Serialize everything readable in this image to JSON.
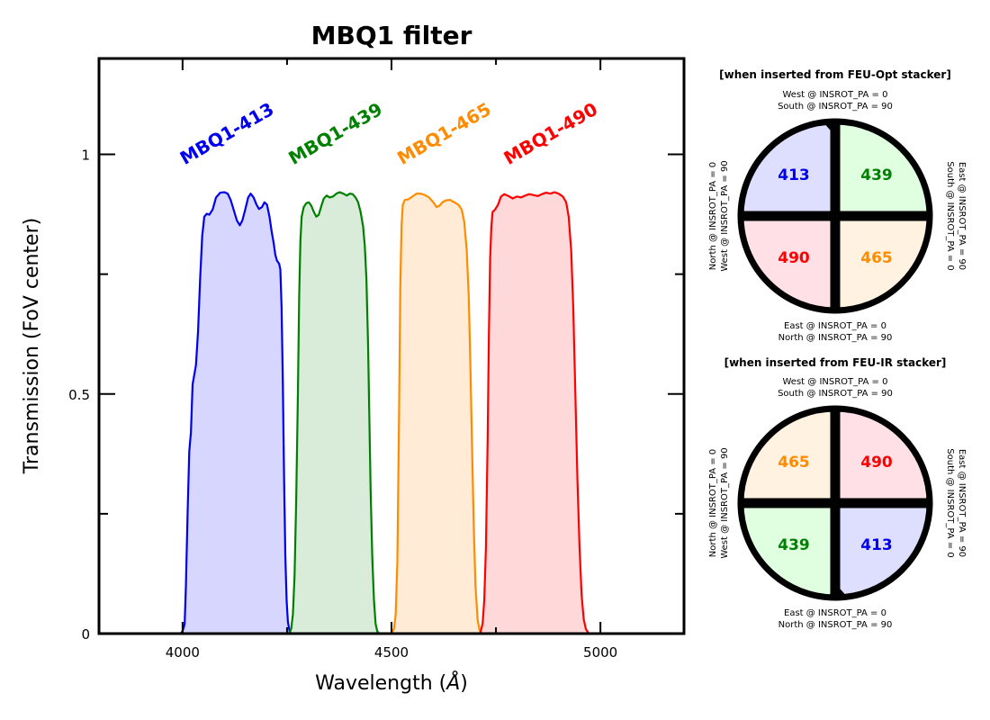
{
  "chart_data": {
    "type": "area",
    "title": "MBQ1 filter",
    "xlabel": "Wavelength ($\\AA$)",
    "xlabel_main": "Wavelength (",
    "xlabel_unit": "Å",
    "xlabel_close": ")",
    "ylabel": "Transmission (FoV center)",
    "xlim": [
      3800,
      5200
    ],
    "ylim": [
      0,
      1.2
    ],
    "xticks": [
      {
        "value": 4000,
        "label": "4000"
      },
      {
        "value": 4500,
        "label": "4500"
      },
      {
        "value": 5000,
        "label": "5000"
      }
    ],
    "yticks": [
      {
        "value": 0,
        "label": "0"
      },
      {
        "value": 0.5,
        "label": "0.5"
      },
      {
        "value": 1,
        "label": "1"
      }
    ],
    "minor_xticks": [
      4250,
      4750
    ],
    "minor_yticks": [
      0.25,
      0.75
    ],
    "grid": false,
    "series": [
      {
        "name": "MBQ1-413",
        "color": "#0000ee",
        "fill": "#d6d6ff",
        "label_x": 4005,
        "label_y": 1.0,
        "points": [
          [
            3995,
            0
          ],
          [
            4000,
            0.005
          ],
          [
            4005,
            0.02
          ],
          [
            4008,
            0.1
          ],
          [
            4012,
            0.25
          ],
          [
            4016,
            0.38
          ],
          [
            4020,
            0.42
          ],
          [
            4024,
            0.52
          ],
          [
            4028,
            0.54
          ],
          [
            4032,
            0.56
          ],
          [
            4037,
            0.63
          ],
          [
            4042,
            0.74
          ],
          [
            4047,
            0.83
          ],
          [
            4052,
            0.87
          ],
          [
            4058,
            0.876
          ],
          [
            4064,
            0.874
          ],
          [
            4072,
            0.885
          ],
          [
            4080,
            0.91
          ],
          [
            4090,
            0.92
          ],
          [
            4100,
            0.921
          ],
          [
            4108,
            0.918
          ],
          [
            4115,
            0.905
          ],
          [
            4122,
            0.885
          ],
          [
            4130,
            0.862
          ],
          [
            4137,
            0.852
          ],
          [
            4143,
            0.862
          ],
          [
            4150,
            0.885
          ],
          [
            4157,
            0.91
          ],
          [
            4163,
            0.918
          ],
          [
            4170,
            0.91
          ],
          [
            4177,
            0.895
          ],
          [
            4183,
            0.886
          ],
          [
            4190,
            0.89
          ],
          [
            4196,
            0.9
          ],
          [
            4202,
            0.895
          ],
          [
            4208,
            0.87
          ],
          [
            4213,
            0.84
          ],
          [
            4218,
            0.815
          ],
          [
            4222,
            0.79
          ],
          [
            4226,
            0.778
          ],
          [
            4231,
            0.772
          ],
          [
            4234,
            0.76
          ],
          [
            4237,
            0.68
          ],
          [
            4240,
            0.52
          ],
          [
            4243,
            0.32
          ],
          [
            4246,
            0.16
          ],
          [
            4249,
            0.07
          ],
          [
            4252,
            0.025
          ],
          [
            4256,
            0.005
          ],
          [
            4260,
            0
          ]
        ]
      },
      {
        "name": "MBQ1-439",
        "color": "#008000",
        "fill": "#d9ecd9",
        "label_x": 4265,
        "label_y": 1.0,
        "points": [
          [
            4255,
            0
          ],
          [
            4260,
            0.01
          ],
          [
            4264,
            0.04
          ],
          [
            4268,
            0.12
          ],
          [
            4272,
            0.28
          ],
          [
            4276,
            0.5
          ],
          [
            4279,
            0.7
          ],
          [
            4282,
            0.82
          ],
          [
            4285,
            0.87
          ],
          [
            4290,
            0.89
          ],
          [
            4296,
            0.898
          ],
          [
            4302,
            0.9
          ],
          [
            4308,
            0.893
          ],
          [
            4314,
            0.88
          ],
          [
            4320,
            0.87
          ],
          [
            4326,
            0.874
          ],
          [
            4332,
            0.892
          ],
          [
            4338,
            0.908
          ],
          [
            4345,
            0.914
          ],
          [
            4352,
            0.91
          ],
          [
            4360,
            0.912
          ],
          [
            4368,
            0.918
          ],
          [
            4376,
            0.921
          ],
          [
            4385,
            0.918
          ],
          [
            4393,
            0.914
          ],
          [
            4400,
            0.918
          ],
          [
            4407,
            0.917
          ],
          [
            4414,
            0.91
          ],
          [
            4420,
            0.9
          ],
          [
            4426,
            0.88
          ],
          [
            4432,
            0.85
          ],
          [
            4436,
            0.81
          ],
          [
            4440,
            0.74
          ],
          [
            4444,
            0.6
          ],
          [
            4447,
            0.45
          ],
          [
            4450,
            0.3
          ],
          [
            4454,
            0.16
          ],
          [
            4458,
            0.07
          ],
          [
            4462,
            0.02
          ],
          [
            4466,
            0.005
          ],
          [
            4470,
            0
          ]
        ]
      },
      {
        "name": "MBQ1-465",
        "color": "#ff8c00",
        "fill": "#ffebd6",
        "label_x": 4525,
        "label_y": 1.0,
        "points": [
          [
            4500,
            0
          ],
          [
            4506,
            0.01
          ],
          [
            4510,
            0.04
          ],
          [
            4514,
            0.15
          ],
          [
            4518,
            0.45
          ],
          [
            4521,
            0.72
          ],
          [
            4524,
            0.85
          ],
          [
            4527,
            0.895
          ],
          [
            4532,
            0.905
          ],
          [
            4540,
            0.906
          ],
          [
            4550,
            0.912
          ],
          [
            4560,
            0.918
          ],
          [
            4570,
            0.918
          ],
          [
            4580,
            0.915
          ],
          [
            4590,
            0.91
          ],
          [
            4600,
            0.9
          ],
          [
            4608,
            0.89
          ],
          [
            4615,
            0.893
          ],
          [
            4622,
            0.9
          ],
          [
            4630,
            0.904
          ],
          [
            4640,
            0.905
          ],
          [
            4650,
            0.9
          ],
          [
            4660,
            0.895
          ],
          [
            4668,
            0.885
          ],
          [
            4674,
            0.86
          ],
          [
            4680,
            0.8
          ],
          [
            4685,
            0.7
          ],
          [
            4689,
            0.55
          ],
          [
            4693,
            0.38
          ],
          [
            4697,
            0.22
          ],
          [
            4701,
            0.1
          ],
          [
            4706,
            0.03
          ],
          [
            4710,
            0.01
          ],
          [
            4715,
            0
          ]
        ]
      },
      {
        "name": "MBQ1-490",
        "color": "#ff0000",
        "fill": "#ffd9d9",
        "label_x": 4780,
        "label_y": 1.0,
        "points": [
          [
            4712,
            0
          ],
          [
            4718,
            0.02
          ],
          [
            4722,
            0.07
          ],
          [
            4726,
            0.18
          ],
          [
            4730,
            0.4
          ],
          [
            4733,
            0.62
          ],
          [
            4736,
            0.78
          ],
          [
            4739,
            0.85
          ],
          [
            4742,
            0.88
          ],
          [
            4748,
            0.885
          ],
          [
            4755,
            0.895
          ],
          [
            4762,
            0.912
          ],
          [
            4770,
            0.917
          ],
          [
            4780,
            0.913
          ],
          [
            4790,
            0.908
          ],
          [
            4800,
            0.912
          ],
          [
            4810,
            0.91
          ],
          [
            4820,
            0.914
          ],
          [
            4830,
            0.917
          ],
          [
            4840,
            0.915
          ],
          [
            4850,
            0.913
          ],
          [
            4860,
            0.917
          ],
          [
            4870,
            0.92
          ],
          [
            4880,
            0.918
          ],
          [
            4890,
            0.921
          ],
          [
            4900,
            0.918
          ],
          [
            4910,
            0.912
          ],
          [
            4918,
            0.9
          ],
          [
            4924,
            0.87
          ],
          [
            4930,
            0.8
          ],
          [
            4935,
            0.68
          ],
          [
            4940,
            0.5
          ],
          [
            4945,
            0.32
          ],
          [
            4950,
            0.18
          ],
          [
            4955,
            0.08
          ],
          [
            4960,
            0.03
          ],
          [
            4965,
            0.01
          ],
          [
            4972,
            0
          ]
        ]
      }
    ]
  },
  "pupils": [
    {
      "header": "[when inserted from FEU-Opt stacker]",
      "top": [
        "West @ INSROT_PA =  0",
        "South @ INSROT_PA = 90"
      ],
      "bottom": [
        "East @ INSROT_PA =  0",
        "North @ INSROT_PA = 90"
      ],
      "left": [
        "North @ INSROT_PA =  0",
        "West @ INSROT_PA = 90"
      ],
      "right": [
        "South @ INSROT_PA =  0",
        "East @ INSROT_PA = 90"
      ],
      "notch": "top",
      "quadrants": {
        "tl": {
          "label": "413",
          "color": "#0000ee",
          "fill": "#dedeff"
        },
        "tr": {
          "label": "439",
          "color": "#008000",
          "fill": "#e0ffe0"
        },
        "bl": {
          "label": "490",
          "color": "#ff0000",
          "fill": "#ffe0e6"
        },
        "br": {
          "label": "465",
          "color": "#ff8c00",
          "fill": "#fff2e0"
        }
      }
    },
    {
      "header": "[when inserted from FEU-IR stacker]",
      "top": [
        "West @ INSROT_PA =  0",
        "South @ INSROT_PA = 90"
      ],
      "bottom": [
        "East @ INSROT_PA =  0",
        "North @ INSROT_PA = 90"
      ],
      "left": [
        "North @ INSROT_PA =  0",
        "West @ INSROT_PA = 90"
      ],
      "right": [
        "South @ INSROT_PA =  0",
        "East @ INSROT_PA = 90"
      ],
      "notch": "bottom",
      "quadrants": {
        "tl": {
          "label": "465",
          "color": "#ff8c00",
          "fill": "#fff2e0"
        },
        "tr": {
          "label": "490",
          "color": "#ff0000",
          "fill": "#ffe0e6"
        },
        "bl": {
          "label": "439",
          "color": "#008000",
          "fill": "#e0ffe0"
        },
        "br": {
          "label": "413",
          "color": "#0000ee",
          "fill": "#dedeff"
        }
      }
    }
  ]
}
